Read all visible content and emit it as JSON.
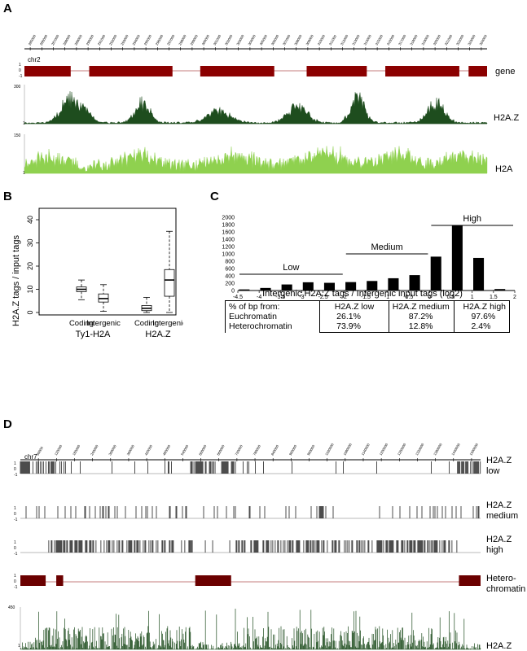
{
  "panelA": {
    "letter": "A",
    "chrom_label": "chr2",
    "ruler_ticks": [
      "285000",
      "286000",
      "287000",
      "288000",
      "289000",
      "290000",
      "291000",
      "292000",
      "293000",
      "294000",
      "295000",
      "296000",
      "297000",
      "298000",
      "299000",
      "300000",
      "301000",
      "302000",
      "303000",
      "304000",
      "305000",
      "306000",
      "307000",
      "308000",
      "309000",
      "310000",
      "311000",
      "312000",
      "313000",
      "314000",
      "315000",
      "316000",
      "317000",
      "318000",
      "319000",
      "320000",
      "321000",
      "322000",
      "323000",
      "324000"
    ],
    "gene_label": "gene",
    "gene_axis": [
      "1",
      "0",
      "-1"
    ],
    "gene_blocks": [
      [
        0.0,
        0.1
      ],
      [
        0.14,
        0.32
      ],
      [
        0.38,
        0.54
      ],
      [
        0.61,
        0.74
      ],
      [
        0.78,
        0.94
      ],
      [
        0.96,
        1.0
      ]
    ],
    "h2az_label": "H2A.Z",
    "h2az_ymax": "300",
    "h2az_ymin": "1",
    "h2a_label": "H2A",
    "h2a_ymax": "150",
    "h2a_ymin": "1",
    "colors": {
      "gene": "#8b0000",
      "h2az": "#1e4d1e",
      "h2a": "#8fd14f"
    }
  },
  "panelB": {
    "letter": "B",
    "ylabel": "H2A.Z  tags / input tags",
    "yticks": [
      "0",
      "10",
      "20",
      "30",
      "40"
    ],
    "box_labels": [
      "Coding",
      "Intergenic",
      "Coding",
      "Intergenic"
    ],
    "group_labels": [
      "Ty1-H2A",
      "H2A.Z"
    ],
    "boxes": [
      {
        "min": 5.5,
        "q1": 9,
        "median": 10,
        "q3": 11,
        "max": 14
      },
      {
        "min": 0.5,
        "q1": 4.5,
        "median": 6,
        "q3": 8,
        "max": 12
      },
      {
        "min": 0,
        "q1": 0.8,
        "median": 1.8,
        "q3": 3,
        "max": 6.5
      },
      {
        "min": 0,
        "q1": 7,
        "median": 14,
        "q3": 18.5,
        "max": 35
      }
    ]
  },
  "panelC": {
    "letter": "C",
    "chart_data": {
      "type": "bar",
      "xlabel": "Intergenic H2A.Z tags / Intergenic input tags (log2)",
      "ylim": [
        0,
        2000
      ],
      "yticks": [
        "0",
        "200",
        "400",
        "600",
        "800",
        "1000",
        "1200",
        "1400",
        "1600",
        "1800",
        "2000"
      ],
      "xticks": [
        "-4.5",
        "-4",
        "-3.5",
        "-3",
        "-2.5",
        "-2",
        "-1.5",
        "-1",
        "-0.5",
        "0",
        "0.5",
        "1",
        "1.5",
        "2"
      ],
      "bars": [
        {
          "x": -4.35,
          "value": 30
        },
        {
          "x": -3.85,
          "value": 70
        },
        {
          "x": -3.35,
          "value": 165
        },
        {
          "x": -2.85,
          "value": 225
        },
        {
          "x": -2.35,
          "value": 210
        },
        {
          "x": -1.85,
          "value": 230
        },
        {
          "x": -1.35,
          "value": 260
        },
        {
          "x": -0.85,
          "value": 335
        },
        {
          "x": -0.35,
          "value": 420
        },
        {
          "x": 0.15,
          "value": 925
        },
        {
          "x": 0.65,
          "value": 1770
        },
        {
          "x": 1.15,
          "value": 890
        },
        {
          "x": 1.65,
          "value": 40
        }
      ],
      "ranges": [
        {
          "label": "Low",
          "from": -4.5,
          "to": -2
        },
        {
          "label": "Medium",
          "from": -2,
          "to": 0
        },
        {
          "label": "High",
          "from": 0,
          "to": 2
        }
      ]
    },
    "table": {
      "header": [
        "% of bp from:",
        "H2A.Z low",
        "H2A.Z medium",
        "H2A.Z high"
      ],
      "rows": [
        [
          "Euchromatin",
          "26.1%",
          "87.2%",
          "97.6%"
        ],
        [
          "Heterochromatin",
          "73.9%",
          "12.8%",
          "2.4%"
        ]
      ]
    }
  },
  "panelD": {
    "letter": "D",
    "chrom_label": "chr7",
    "ruler_ticks": [
      "60000",
      "120000",
      "180000",
      "240000",
      "300000",
      "360000",
      "420000",
      "480000",
      "540000",
      "600000",
      "660000",
      "720000",
      "780000",
      "840000",
      "900000",
      "960000",
      "1020000",
      "1080000",
      "1140000",
      "1200000",
      "1260000",
      "1320000",
      "1380000",
      "1440000",
      "1500000"
    ],
    "track_axis": [
      "1",
      "0",
      "-1"
    ],
    "low_label": [
      "H2A.Z",
      "low"
    ],
    "medium_label": [
      "H2A.Z",
      "medium"
    ],
    "high_label": [
      "H2A.Z",
      "high"
    ],
    "hetero_label": [
      "Hetero-",
      "chromatin"
    ],
    "h2az_label": "H2A.Z",
    "h2az_ymax": "450",
    "h2az_ymin": "1",
    "hetero_blocks": [
      [
        0.0,
        0.055
      ],
      [
        0.078,
        0.093
      ],
      [
        0.38,
        0.458
      ],
      [
        0.953,
        1.0
      ]
    ],
    "colors": {
      "hetero": "#6b0000",
      "h2az": "#1e4d1e"
    }
  }
}
